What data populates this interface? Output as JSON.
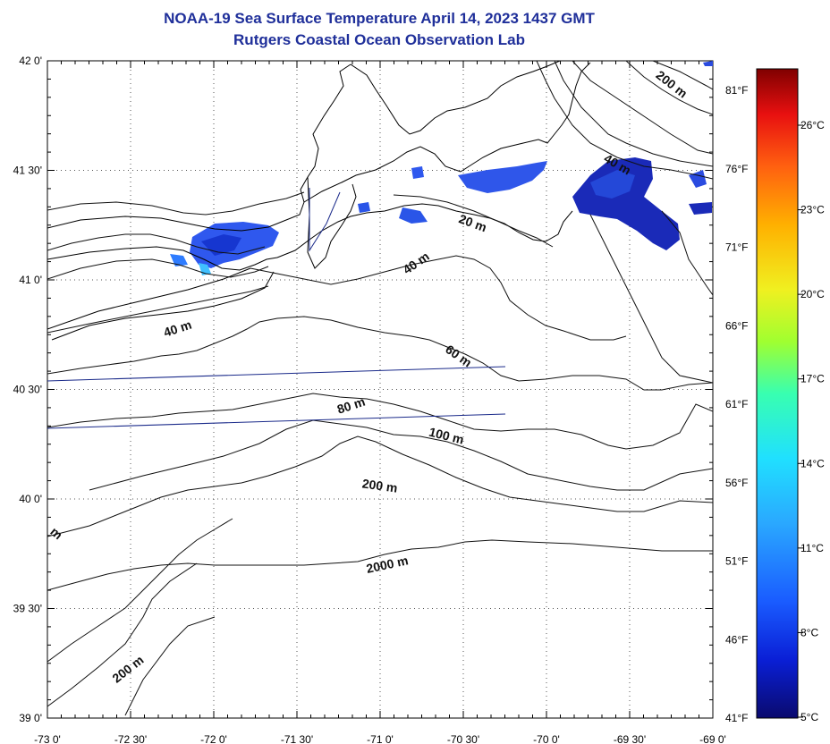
{
  "title": {
    "line1": "NOAA-19 Sea Surface Temperature April 14, 2023 1437 GMT",
    "line2": "Rutgers Coastal Ocean Observation Lab"
  },
  "map": {
    "lon_ticks": [
      "-73 0'",
      "-72 30'",
      "-72 0'",
      "-71 30'",
      "-71 0'",
      "-70 30'",
      "-70 0'",
      "-69 30'",
      "-69 0'"
    ],
    "lat_ticks": [
      "42 0'",
      "41 30'",
      "41 0'",
      "40 30'",
      "40 0'",
      "39 30'",
      "39 0'"
    ],
    "fahrenheit_ticks": [
      "81°F",
      "76°F",
      "71°F",
      "66°F",
      "61°F",
      "56°F",
      "51°F",
      "46°F",
      "41°F"
    ],
    "contour_labels": [
      "200 m",
      "40 m",
      "20 m",
      "40 m",
      "40 m",
      "60 m",
      "80 m",
      "100 m",
      "200 m",
      "2000 m",
      "200 m",
      "m"
    ]
  },
  "colorbar": {
    "celsius_ticks": [
      "26°C",
      "23°C",
      "20°C",
      "17°C",
      "14°C",
      "11°C",
      "8°C",
      "5°C"
    ],
    "colors": [
      "#0a0a6e",
      "#0a1fd6",
      "#1a5cff",
      "#2aa8ff",
      "#20e0ff",
      "#38ffb0",
      "#a0ff30",
      "#f0f020",
      "#ffb000",
      "#ff6010",
      "#e81010",
      "#800000"
    ]
  }
}
